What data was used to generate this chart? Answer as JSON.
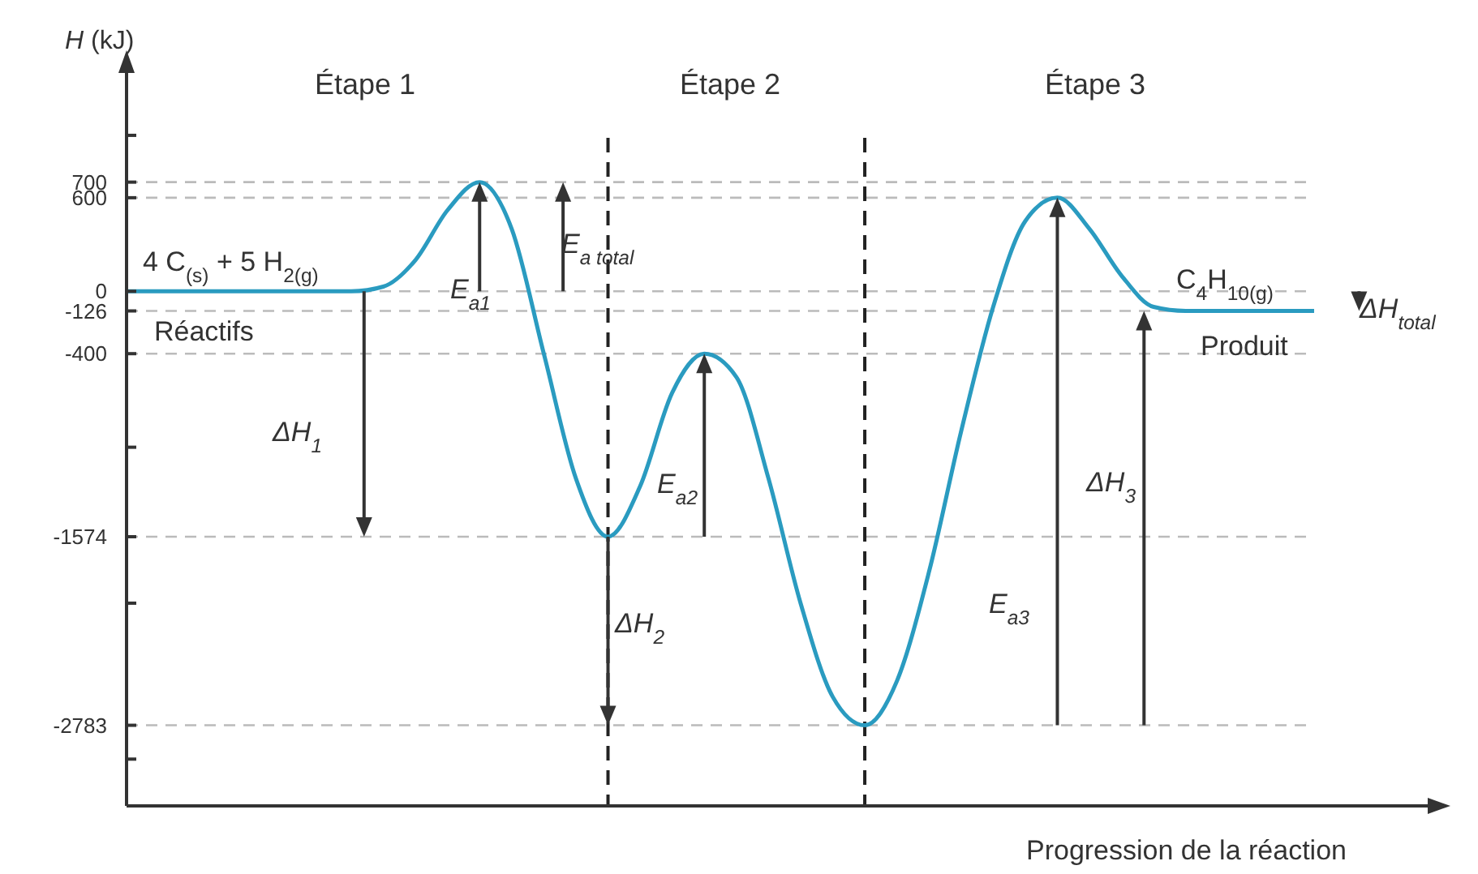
{
  "chart_data": {
    "type": "line",
    "xlabel": "Progression de la réaction",
    "ylabel": "H (kJ)",
    "tick_labels": "y",
    "categories": [
      null,
      null,
      null,
      null,
      null,
      null,
      null,
      null,
      null,
      null,
      null,
      null,
      null,
      null,
      null,
      null,
      null,
      null,
      null,
      null,
      null,
      null,
      null,
      null,
      null,
      null,
      null,
      null,
      null,
      null,
      null,
      null,
      null,
      null,
      null,
      null,
      null,
      null
    ],
    "series": [
      {
        "color": "#2a9bc0",
        "values": [
          0,
          0,
          0,
          0,
          0,
          0,
          0,
          0,
          30,
          200,
          520,
          700,
          400,
          -400,
          -1200,
          -1574,
          -1250,
          -650,
          -400,
          -550,
          -1200,
          -2000,
          -2600,
          -2783,
          -2500,
          -1800,
          -900,
          -100,
          450,
          600,
          400,
          100,
          -100,
          -126,
          -126,
          -126,
          -126,
          -126
        ]
      }
    ],
    "ylim": [
      -3300,
      1400
    ],
    "yticks": [
      {
        "value": 1000,
        "label": null
      },
      700,
      600,
      0,
      -126,
      -400,
      {
        "value": -1000,
        "label": null
      },
      -1574,
      {
        "value": -2000,
        "label": null
      },
      -2783,
      {
        "value": -3000,
        "label": null
      }
    ],
    "ref_lines": [
      {
        "axis": "y",
        "value": 700,
        "color": "#bbbbbb",
        "line_style": "dashed"
      },
      {
        "axis": "y",
        "value": 600,
        "color": "#bbbbbb",
        "line_style": "dashed"
      },
      {
        "axis": "y",
        "value": 0,
        "color": "#bbbbbb",
        "line_style": "dashed"
      },
      {
        "axis": "y",
        "value": -126,
        "color": "#bbbbbb",
        "line_style": "dashed"
      },
      {
        "axis": "y",
        "value": -400,
        "color": "#bbbbbb",
        "line_style": "dashed"
      },
      {
        "axis": "y",
        "value": -1574,
        "color": "#bbbbbb",
        "line_style": "dashed"
      },
      {
        "axis": "y",
        "value": -2783,
        "color": "#bbbbbb",
        "line_style": "dashed"
      }
    ],
    "annotations": [
      "Étape 1",
      "Étape 2",
      "Étape 3",
      "4 C$_{(s)}$ + 5 H$_{2(g)}$",
      "Réactifs",
      "C$_{4}$H$_{10(g)}$",
      "Produit",
      "E$_{a1}$",
      "E$_{a total}$",
      "ΔH$_{1}$",
      "E$_{a2}$",
      "ΔH$_{2}$",
      "E$_{a3}$",
      "ΔH$_{3}$",
      "ΔH$_{total}$"
    ]
  }
}
